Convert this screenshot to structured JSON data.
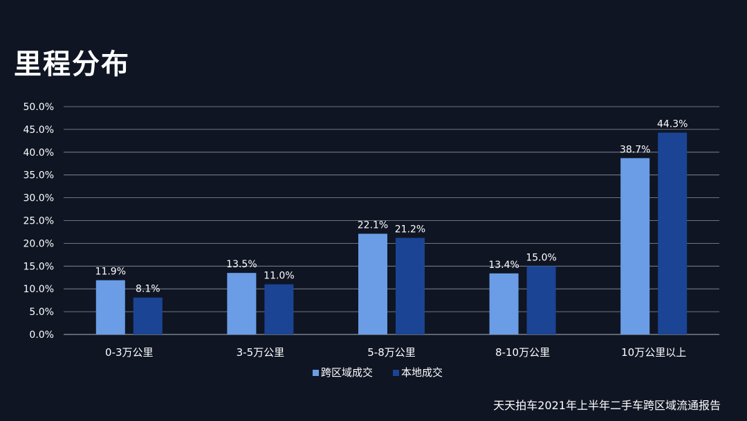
{
  "page": {
    "title": "里程分布",
    "source": "天天拍车2021年上半年二手车跨区域流通报告"
  },
  "colors": {
    "background": "#0f1523",
    "series1": "#6a9de6",
    "series2": "#1b4494",
    "grid": "#8f96a3"
  },
  "chart_data": {
    "type": "bar",
    "categories": [
      "0-3万公里",
      "3-5万公里",
      "5-8万公里",
      "8-10万公里",
      "10万公里以上"
    ],
    "series": [
      {
        "name": "跨区域成交",
        "values": [
          11.9,
          13.5,
          22.1,
          13.4,
          38.7
        ],
        "labels": [
          "11.9%",
          "13.5%",
          "22.1%",
          "13.4%",
          "38.7%"
        ]
      },
      {
        "name": "本地成交",
        "values": [
          8.1,
          11.0,
          21.2,
          15.0,
          44.3
        ],
        "labels": [
          "8.1%",
          "11.0%",
          "21.2%",
          "15.0%",
          "44.3%"
        ]
      }
    ],
    "ylim": [
      0,
      50
    ],
    "yticks": [
      "0.0%",
      "5.0%",
      "10.0%",
      "15.0%",
      "20.0%",
      "25.0%",
      "30.0%",
      "35.0%",
      "40.0%",
      "45.0%",
      "50.0%"
    ],
    "grid": true,
    "legend": "bottom"
  }
}
